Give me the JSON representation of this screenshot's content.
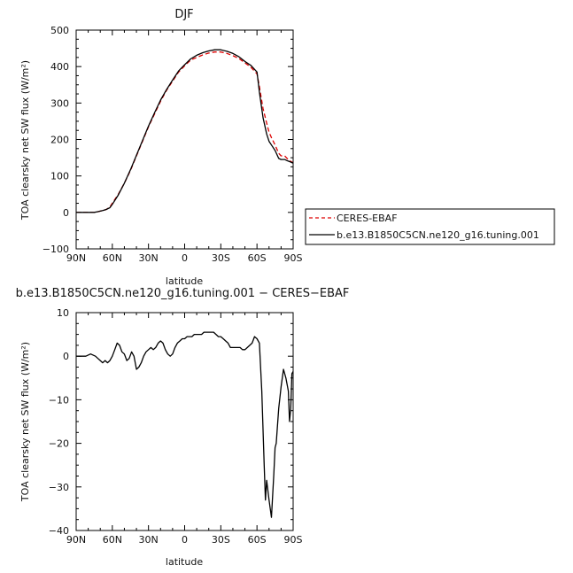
{
  "chart_data": [
    {
      "type": "line",
      "title": "DJF",
      "xlabel": "latitude",
      "ylabel": "TOA clearsky net SW flux (W/m²)",
      "xlim": [
        90,
        -90
      ],
      "ylim": [
        -100,
        500
      ],
      "xticks": [
        90,
        60,
        30,
        0,
        -30,
        -60,
        -90
      ],
      "xtick_labels": [
        "90N",
        "60N",
        "30N",
        "0",
        "30S",
        "60S",
        "90S"
      ],
      "yticks": [
        -100,
        0,
        100,
        200,
        300,
        400,
        500
      ],
      "ytick_labels": [
        "−100",
        "0",
        "100",
        "200",
        "300",
        "400",
        "500"
      ],
      "legend": "right",
      "series": [
        {
          "name": "CERES-EBAF",
          "color": "#dd0000",
          "dash": true,
          "x": [
            90,
            80,
            75,
            72,
            68,
            65,
            62,
            60,
            55,
            50,
            45,
            40,
            35,
            30,
            25,
            20,
            15,
            10,
            5,
            0,
            -5,
            -10,
            -15,
            -20,
            -25,
            -30,
            -35,
            -40,
            -45,
            -50,
            -55,
            -60,
            -62,
            -65,
            -68,
            -70,
            -72,
            -75,
            -78,
            -80,
            -83,
            -85,
            -88,
            -90
          ],
          "y": [
            0,
            0,
            0,
            2,
            5,
            8,
            15,
            25,
            50,
            80,
            115,
            155,
            195,
            235,
            270,
            305,
            335,
            360,
            385,
            402,
            418,
            425,
            432,
            437,
            440,
            440,
            436,
            430,
            422,
            410,
            398,
            380,
            345,
            285,
            245,
            220,
            205,
            185,
            162,
            155,
            155,
            148,
            140,
            136
          ]
        },
        {
          "name": "b.e13.B1850C5CN.ne120_g16.tuning.001",
          "color": "#000000",
          "dash": false,
          "x": [
            90,
            80,
            75,
            72,
            68,
            65,
            62,
            60,
            55,
            50,
            45,
            40,
            35,
            30,
            25,
            20,
            15,
            10,
            5,
            0,
            -5,
            -10,
            -15,
            -20,
            -25,
            -30,
            -35,
            -40,
            -45,
            -50,
            -55,
            -60,
            -62,
            -65,
            -68,
            -70,
            -72,
            -75,
            -78,
            -80,
            -83,
            -85,
            -88,
            -90
          ],
          "y": [
            0,
            0,
            0,
            2,
            5,
            8,
            13,
            22,
            48,
            80,
            117,
            157,
            197,
            237,
            273,
            308,
            337,
            363,
            388,
            405,
            421,
            431,
            438,
            443,
            446,
            446,
            442,
            436,
            427,
            414,
            403,
            385,
            330,
            260,
            215,
            195,
            185,
            170,
            148,
            145,
            145,
            142,
            138,
            135
          ]
        }
      ]
    },
    {
      "type": "line",
      "title": "b.e13.B1850C5CN.ne120_g16.tuning.001 − CERES−EBAF",
      "xlabel": "latitude",
      "ylabel": "TOA clearsky net SW flux (W/m²)",
      "xlim": [
        90,
        -90
      ],
      "ylim": [
        -40,
        10
      ],
      "xticks": [
        90,
        60,
        30,
        0,
        -30,
        -60,
        -90
      ],
      "xtick_labels": [
        "90N",
        "60N",
        "30N",
        "0",
        "30S",
        "60S",
        "90S"
      ],
      "yticks": [
        -40,
        -30,
        -20,
        -10,
        0,
        10
      ],
      "ytick_labels": [
        "−40",
        "−30",
        "−20",
        "−10",
        "0",
        "10"
      ],
      "series": [
        {
          "color": "#000000",
          "dash": false,
          "x": [
            90,
            82,
            78,
            74,
            72,
            70,
            68,
            66,
            64,
            62,
            60,
            58,
            56,
            54,
            52,
            50,
            48,
            46,
            44,
            42,
            40,
            38,
            36,
            34,
            32,
            30,
            28,
            26,
            24,
            22,
            20,
            18,
            16,
            14,
            12,
            10,
            8,
            6,
            4,
            2,
            0,
            -2,
            -4,
            -6,
            -8,
            -10,
            -12,
            -14,
            -16,
            -18,
            -20,
            -22,
            -24,
            -26,
            -28,
            -30,
            -32,
            -34,
            -36,
            -38,
            -40,
            -42,
            -44,
            -46,
            -48,
            -50,
            -52,
            -54,
            -56,
            -58,
            -60,
            -62,
            -64,
            -66,
            -67,
            -68,
            -70,
            -72,
            -74,
            -75,
            -76,
            -78,
            -80,
            -82,
            -84,
            -86,
            -87,
            -88,
            -89,
            -90
          ],
          "y": [
            0,
            0,
            0.5,
            0,
            -0.5,
            -1,
            -1.5,
            -1,
            -1.5,
            -1,
            0,
            1.5,
            3,
            2.5,
            1,
            0.5,
            -1,
            -0.5,
            1,
            0,
            -3,
            -2.5,
            -1.5,
            0,
            1,
            1.5,
            2,
            1.5,
            2,
            3,
            3.5,
            3,
            1.5,
            0.5,
            0,
            0.5,
            2,
            3,
            3.5,
            4,
            4,
            4.5,
            4.5,
            4.5,
            5,
            5,
            5,
            5,
            5.5,
            5.5,
            5.5,
            5.5,
            5.5,
            5,
            4.5,
            4.5,
            4,
            3.5,
            3,
            2,
            2,
            2,
            2,
            2,
            1.5,
            1.5,
            2,
            2.5,
            3,
            4.5,
            4,
            3,
            -8,
            -25,
            -33,
            -28.5,
            -33,
            -37,
            -27,
            -21,
            -20,
            -12,
            -7,
            -3,
            -5,
            -8,
            -15,
            -12,
            -4,
            -3.5
          ]
        }
      ]
    }
  ]
}
